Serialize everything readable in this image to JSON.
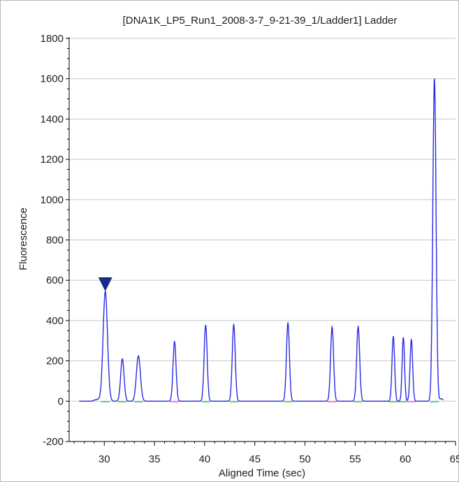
{
  "chart_data": {
    "type": "line",
    "title": "[DNA1K_LP5_Run1_2008-3-7_9-21-39_1/Ladder1]  Ladder",
    "xlabel": "Aligned Time (sec)",
    "ylabel": "Fluorescence",
    "xlim": [
      26.5,
      65
    ],
    "ylim": [
      -200,
      1800
    ],
    "xticks": [
      30,
      35,
      40,
      45,
      50,
      55,
      60,
      65
    ],
    "yticks": [
      -200,
      0,
      200,
      400,
      600,
      800,
      1000,
      1200,
      1400,
      1600,
      1800
    ],
    "grid": "horizontal",
    "colors": {
      "trace": "#2a2ae6",
      "marker": "#1a2a8c",
      "baseline_segments": "#3cc85a",
      "baseline_pink": "#ff66cc",
      "grid": "#c8c8c8",
      "axis": "#000000"
    },
    "peaks": [
      {
        "x": 30.1,
        "y": 545,
        "width": 0.22
      },
      {
        "x": 31.8,
        "y": 210,
        "width": 0.17
      },
      {
        "x": 33.4,
        "y": 225,
        "width": 0.2
      },
      {
        "x": 37.0,
        "y": 295,
        "width": 0.15
      },
      {
        "x": 40.1,
        "y": 378,
        "width": 0.15
      },
      {
        "x": 42.9,
        "y": 380,
        "width": 0.15
      },
      {
        "x": 48.3,
        "y": 388,
        "width": 0.15
      },
      {
        "x": 52.7,
        "y": 368,
        "width": 0.15
      },
      {
        "x": 55.3,
        "y": 370,
        "width": 0.15
      },
      {
        "x": 58.8,
        "y": 322,
        "width": 0.13
      },
      {
        "x": 59.8,
        "y": 316,
        "width": 0.12
      },
      {
        "x": 60.6,
        "y": 305,
        "width": 0.13
      },
      {
        "x": 62.9,
        "y": 1600,
        "width": 0.16
      }
    ],
    "marker": {
      "type": "triangle-down",
      "x": 30.1,
      "y": 580
    }
  }
}
